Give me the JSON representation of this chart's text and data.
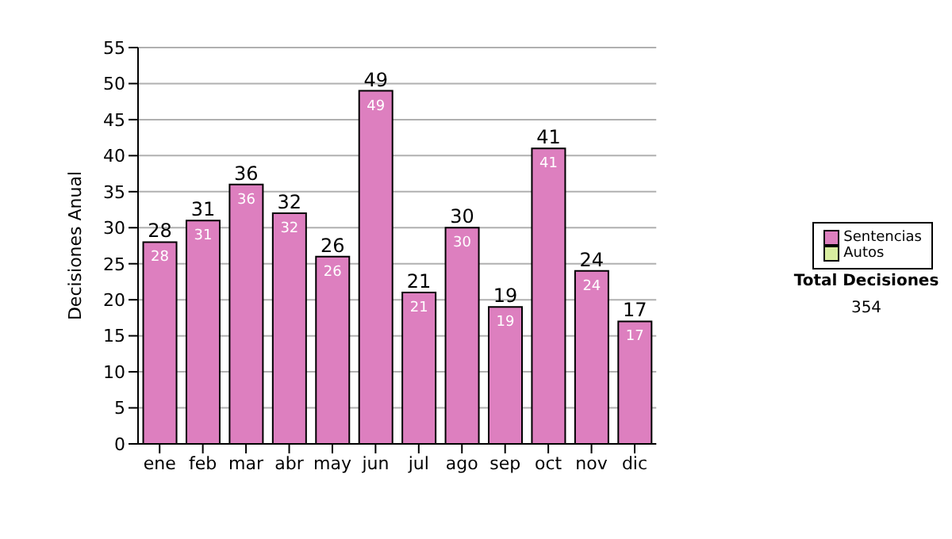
{
  "chart_data": {
    "type": "bar",
    "ylabel": "Decisiones Anual",
    "categories": [
      "ene",
      "feb",
      "mar",
      "abr",
      "may",
      "jun",
      "jul",
      "ago",
      "sep",
      "oct",
      "nov",
      "dic"
    ],
    "series": [
      {
        "name": "Sentencias",
        "color": "#dd7fbf",
        "values": [
          28,
          31,
          36,
          32,
          26,
          49,
          21,
          30,
          19,
          41,
          24,
          17
        ],
        "value_labels": [
          "28",
          "31",
          "36",
          "32",
          "26",
          "49",
          "21",
          "30",
          "19",
          "41",
          "24",
          "17"
        ]
      },
      {
        "name": "Autos",
        "color": "#d8eda0",
        "values": [
          0,
          0,
          0,
          0,
          0,
          0,
          0,
          0,
          0,
          0,
          0,
          0
        ]
      }
    ],
    "stacked": true,
    "totals": [
      "28",
      "31",
      "36",
      "32",
      "26",
      "49",
      "21",
      "30",
      "19",
      "41",
      "24",
      "17"
    ],
    "ylim": [
      0,
      55
    ],
    "yticks": [
      0,
      5,
      10,
      15,
      20,
      25,
      30,
      35,
      40,
      45,
      50,
      55
    ],
    "grid": "y",
    "legend": "right",
    "annotations": [
      "Total Decisiones",
      "354"
    ]
  }
}
